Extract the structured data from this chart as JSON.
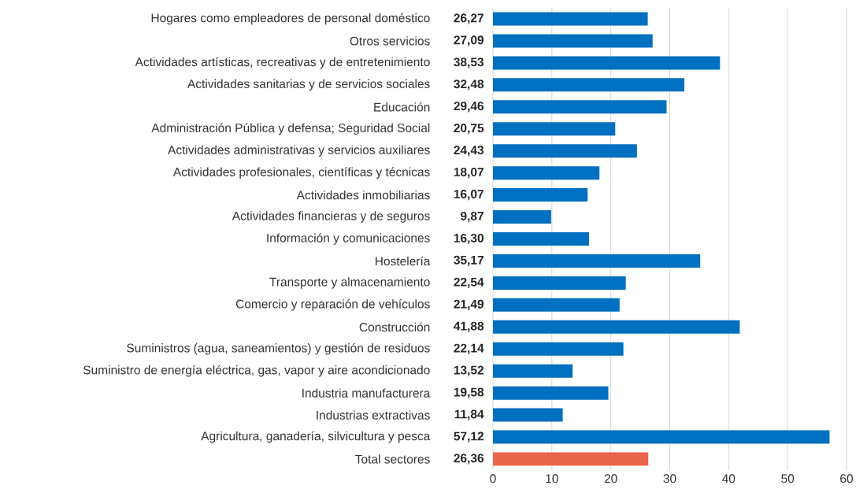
{
  "chart_data": {
    "type": "bar",
    "orientation": "horizontal",
    "categories": [
      "Hogares como empleadores de personal doméstico",
      "Otros servicios",
      "Actividades artísticas, recreativas y de entretenimiento",
      "Actividades sanitarias y de servicios sociales",
      "Educación",
      "Administración Pública y defensa; Seguridad Social",
      "Actividades administrativas y servicios auxiliares",
      "Actividades profesionales, científicas y técnicas",
      "Actividades inmobiliarias",
      "Actividades financieras y de seguros",
      "Información y comunicaciones",
      "Hostelería",
      "Transporte y almacenamiento",
      "Comercio y reparación de vehículos",
      "Construcción",
      "Suministros (agua, saneamientos) y gestión de residuos",
      "Suministro de energía eléctrica, gas, vapor y aire acondicionado",
      "Industria manufacturera",
      "Industrias extractivas",
      "Agricultura, ganadería, silvicultura y pesca",
      "Total sectores"
    ],
    "values": [
      26.27,
      27.09,
      38.53,
      32.48,
      29.46,
      20.75,
      24.43,
      18.07,
      16.07,
      9.87,
      16.3,
      35.17,
      22.54,
      21.49,
      41.88,
      22.14,
      13.52,
      19.58,
      11.84,
      57.12,
      26.36
    ],
    "value_labels": [
      "26,27",
      "27,09",
      "38,53",
      "32,48",
      "29,46",
      "20,75",
      "24,43",
      "18,07",
      "16,07",
      "9,87",
      "16,30",
      "35,17",
      "22,54",
      "21,49",
      "41,88",
      "22,14",
      "13,52",
      "19,58",
      "11,84",
      "57,12",
      "26,36"
    ],
    "colors": [
      "#0070c0",
      "#0070c0",
      "#0070c0",
      "#0070c0",
      "#0070c0",
      "#0070c0",
      "#0070c0",
      "#0070c0",
      "#0070c0",
      "#0070c0",
      "#0070c0",
      "#0070c0",
      "#0070c0",
      "#0070c0",
      "#0070c0",
      "#0070c0",
      "#0070c0",
      "#0070c0",
      "#0070c0",
      "#0070c0",
      "#e8644a"
    ],
    "xlim": [
      0,
      60
    ],
    "xticks": [
      0,
      10,
      20,
      30,
      40,
      50,
      60
    ],
    "grid": "x"
  }
}
